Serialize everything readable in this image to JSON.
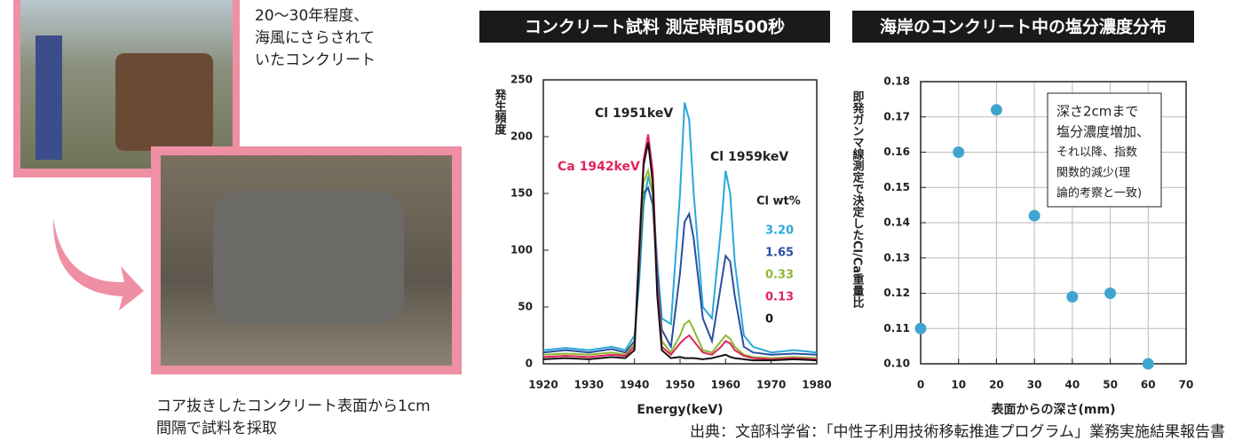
{
  "captions": {
    "top": [
      "20〜30年程度、",
      "海風にさらされて",
      "いたコンクリート"
    ],
    "bottom": [
      "コア抜きしたコンクリート表面から1cm",
      "間隔で試料を採取"
    ]
  },
  "source": "出典：文部科学省：「中性子利用技術移転推進プログラム」業務実施結果報告書",
  "chart_data": [
    {
      "type": "line",
      "title": "コンクリート試料 測定時間500秒",
      "xlabel": "Energy(keV)",
      "ylabel": "発生頻度",
      "x": [
        1920,
        1925,
        1930,
        1935,
        1938,
        1940,
        1941,
        1942,
        1943,
        1944,
        1945,
        1946,
        1948,
        1950,
        1951,
        1952,
        1953,
        1955,
        1957,
        1959,
        1960,
        1961,
        1962,
        1964,
        1966,
        1970,
        1975,
        1980
      ],
      "xlim": [
        1920,
        1980
      ],
      "xticks": [
        1920,
        1930,
        1940,
        1950,
        1960,
        1970,
        1980
      ],
      "ylim": [
        0,
        250
      ],
      "yticks": [
        0,
        50,
        100,
        150,
        200,
        250
      ],
      "legend_title": "Cl wt%",
      "annotations": [
        {
          "text": "Cl 1951keV",
          "color": "#222222"
        },
        {
          "text": "Ca 1942keV",
          "color": "#e0245a"
        },
        {
          "text": "Cl 1959keV",
          "color": "#222222"
        }
      ],
      "series": [
        {
          "name": "3.20",
          "color": "#29a8d8",
          "values": [
            12,
            14,
            12,
            15,
            12,
            25,
            70,
            140,
            165,
            150,
            90,
            40,
            35,
            150,
            230,
            215,
            150,
            50,
            40,
            120,
            170,
            150,
            90,
            25,
            15,
            10,
            12,
            10
          ]
        },
        {
          "name": "1.65",
          "color": "#2a4fa0",
          "values": [
            10,
            12,
            10,
            13,
            10,
            20,
            80,
            150,
            155,
            140,
            80,
            30,
            15,
            80,
            125,
            132,
            110,
            40,
            20,
            70,
            95,
            90,
            60,
            15,
            10,
            8,
            9,
            8
          ]
        },
        {
          "name": "0.33",
          "color": "#8db832",
          "values": [
            8,
            9,
            8,
            10,
            8,
            18,
            90,
            160,
            170,
            150,
            70,
            20,
            10,
            25,
            35,
            38,
            30,
            12,
            10,
            20,
            25,
            22,
            15,
            8,
            6,
            5,
            6,
            5
          ]
        },
        {
          "name": "0.13",
          "color": "#e0245a",
          "values": [
            6,
            7,
            6,
            8,
            7,
            15,
            100,
            180,
            202,
            170,
            70,
            15,
            8,
            18,
            22,
            25,
            20,
            10,
            8,
            15,
            20,
            18,
            12,
            7,
            5,
            4,
            5,
            4
          ]
        },
        {
          "name": "0",
          "color": "#111111",
          "values": [
            4,
            5,
            4,
            6,
            5,
            12,
            95,
            175,
            195,
            160,
            60,
            12,
            5,
            6,
            5,
            5,
            5,
            4,
            5,
            7,
            8,
            6,
            5,
            4,
            3,
            3,
            4,
            3
          ]
        }
      ]
    },
    {
      "type": "scatter",
      "title": "海岸のコンクリート中の塩分濃度分布",
      "xlabel": "表面からの深さ(mm)",
      "ylabel": "即発ガンマ線測定で決定したCl/Ca重量比",
      "x": [
        0,
        10,
        20,
        30,
        40,
        50,
        60
      ],
      "values": [
        0.11,
        0.16,
        0.172,
        0.142,
        0.119,
        0.12,
        0.1
      ],
      "color": "#3fa5d0",
      "xlim": [
        0,
        70
      ],
      "xticks": [
        0,
        10,
        20,
        30,
        40,
        50,
        60,
        70
      ],
      "ylim": [
        0.1,
        0.18
      ],
      "yticks": [
        {
          "value": 0.1,
          "label": "0.10"
        },
        0.11,
        0.12,
        0.13,
        0.14,
        0.15,
        0.16,
        0.17,
        0.18
      ],
      "grid": true,
      "note": [
        "深さ2cmまで",
        "塩分濃度増加、",
        "それ以降、指数",
        "関数的減少(理",
        "論的考察と一致)"
      ]
    }
  ]
}
